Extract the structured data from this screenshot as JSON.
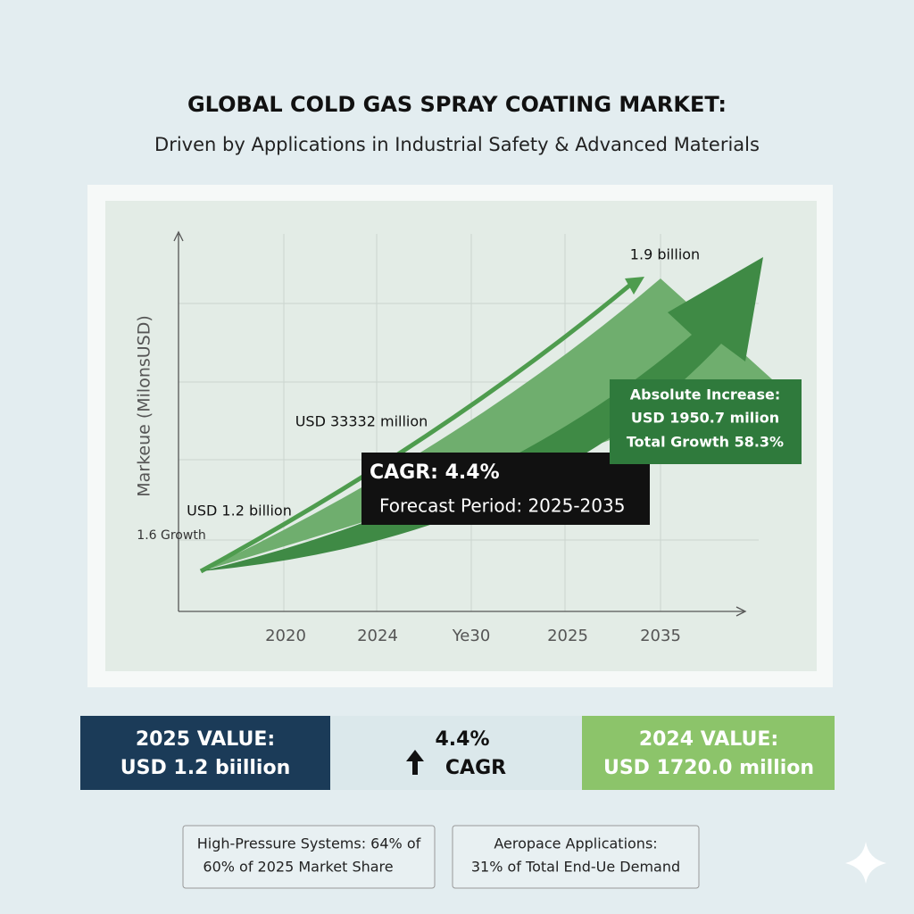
{
  "header": {
    "title": "GLOBAL COLD GAS SPRAY COATING MARKET:",
    "subtitle": "Driven by Applications in Industrial Safety & Advanced Materials"
  },
  "chart": {
    "y_label": "Markeue (MilonsUSD)",
    "x_labels": [
      "2020",
      "2024",
      "Ye30",
      "2025",
      "2035"
    ],
    "annotations": {
      "peak": "1.9 billion",
      "mid": "USD 33332 million",
      "start": "USD 1.2 billion",
      "growth": "1.6 Growth"
    },
    "cagr_box": {
      "title": "CAGR: 4.4%",
      "period": "Forecast Period: 2025-2035"
    },
    "increase_box": [
      "Absolute Increase:",
      "USD 1950.7 milion",
      "Total Growth  58.3%"
    ]
  },
  "stats": [
    {
      "title": "2025 VALUE:",
      "value": "USD 1.2 biillion"
    },
    {
      "title": "4.4%",
      "value": "CAGR"
    },
    {
      "title": "2024 VALUE:",
      "value": "USD 1720.0 million"
    }
  ],
  "notes": [
    [
      "High-Pressure Systems: 64% of",
      "60% of 2025 Market Share"
    ],
    [
      "Aeropace Applications:",
      "31% of Total End-Ue Demand"
    ]
  ]
}
